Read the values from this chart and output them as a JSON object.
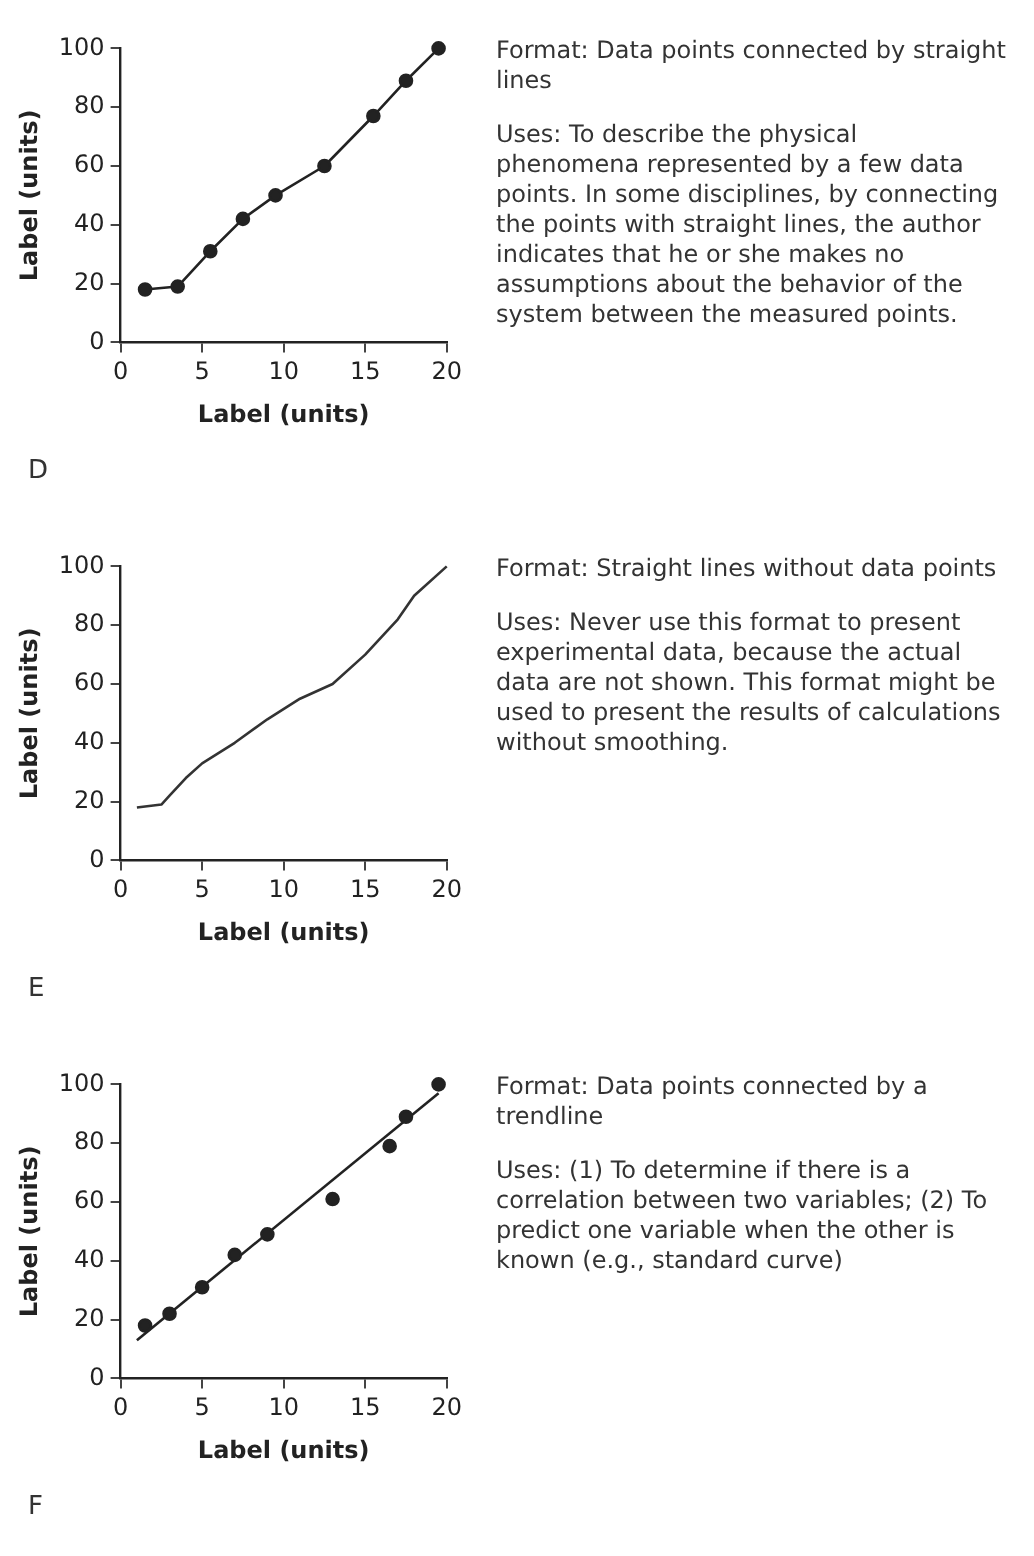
{
  "chart_data": [
    {
      "type": "line",
      "title": "D",
      "annotations": [
        "Format: Data points connected by straight lines",
        "Uses: To describe the physical phenomena represented by a few data points. In some disciplines, by connecting the points with straight lines, the author indicates that he or she makes no assumptions about the behavior of the system between the measured points."
      ],
      "xlabel": "Label (units)",
      "ylabel": "Label (units)",
      "xlim": [
        0,
        20
      ],
      "ylim": [
        0,
        100
      ],
      "xticks": [
        0,
        5,
        10,
        15,
        20
      ],
      "yticks": [
        0,
        20,
        40,
        60,
        80,
        100
      ],
      "marker": "circle",
      "grid": false,
      "series": [
        {
          "color": "#222222",
          "x": [
            1.5,
            3.5,
            5.5,
            7.5,
            9.5,
            12.5,
            15.5,
            17.5,
            19.5
          ],
          "values": [
            18,
            19,
            31,
            42,
            50,
            60,
            77,
            89,
            100
          ]
        }
      ]
    },
    {
      "type": "line",
      "title": "E",
      "annotations": [
        "Format: Straight lines without data points",
        "Uses: Never use this format to present experimental data, because the actual data are not shown. This format might be used to present the results of calculations without smoothing."
      ],
      "xlabel": "Label (units)",
      "ylabel": "Label (units)",
      "xlim": [
        0,
        20
      ],
      "ylim": [
        0,
        100
      ],
      "xticks": [
        0,
        5,
        10,
        15,
        20
      ],
      "yticks": [
        0,
        20,
        40,
        60,
        80,
        100
      ],
      "marker": "none",
      "grid": false,
      "series": [
        {
          "color": "#333333",
          "x": [
            1,
            2.5,
            3,
            4,
            5,
            7,
            9,
            11,
            13,
            15,
            17,
            18,
            20
          ],
          "values": [
            18,
            19,
            22,
            28,
            33,
            40,
            48,
            55,
            60,
            70,
            82,
            90,
            100
          ]
        }
      ]
    },
    {
      "type": "scatter",
      "title": "F",
      "annotations": [
        "Format: Data points connected by a trendline",
        "Uses: (1) To determine if there is a correlation between two variables; (2) To predict one variable when the other is known (e.g., standard curve)"
      ],
      "xlabel": "Label (units)",
      "ylabel": "Label (units)",
      "xlim": [
        0,
        20
      ],
      "ylim": [
        0,
        100
      ],
      "xticks": [
        0,
        5,
        10,
        15,
        20
      ],
      "yticks": [
        0,
        20,
        40,
        60,
        80,
        100
      ],
      "marker": "circle",
      "grid": false,
      "series": [
        {
          "color": "#222222",
          "x": [
            1.5,
            3,
            5,
            7,
            9,
            13,
            16.5,
            17.5,
            19.5
          ],
          "values": [
            18,
            22,
            31,
            42,
            49,
            61,
            79,
            89,
            100
          ]
        },
        {
          "type": "line",
          "color": "#222222",
          "marker": "none",
          "x": [
            1,
            19.5
          ],
          "values": [
            13,
            97
          ]
        }
      ]
    }
  ]
}
